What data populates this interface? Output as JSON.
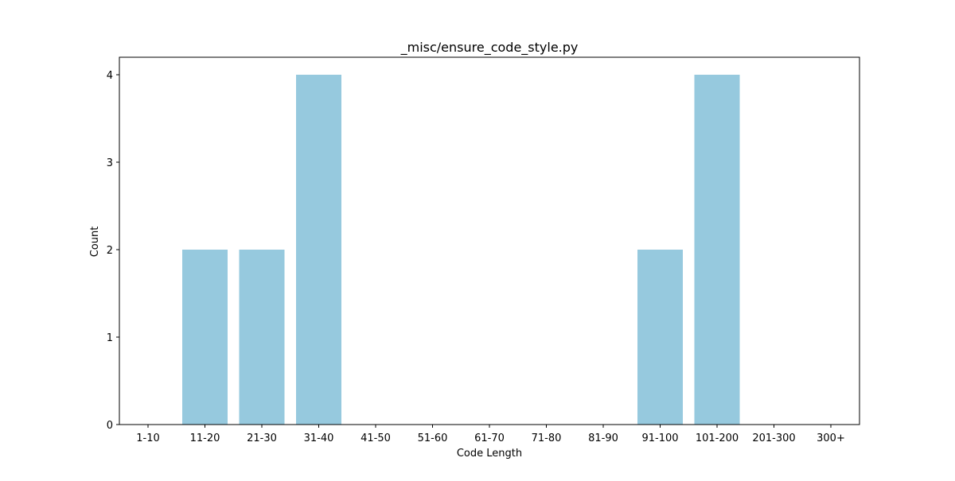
{
  "chart_data": {
    "type": "bar",
    "title": "_misc/ensure_code_style.py",
    "xlabel": "Code Length",
    "ylabel": "Count",
    "categories": [
      "1-10",
      "11-20",
      "21-30",
      "31-40",
      "41-50",
      "51-60",
      "61-70",
      "71-80",
      "81-90",
      "91-100",
      "101-200",
      "201-300",
      "300+"
    ],
    "values": [
      0,
      2,
      2,
      4,
      0,
      0,
      0,
      0,
      0,
      2,
      4,
      0,
      0
    ],
    "yticks": [
      0,
      1,
      2,
      3,
      4
    ],
    "ylim": [
      0,
      4.2
    ],
    "grid": false,
    "bar_color": "#96c9de"
  }
}
